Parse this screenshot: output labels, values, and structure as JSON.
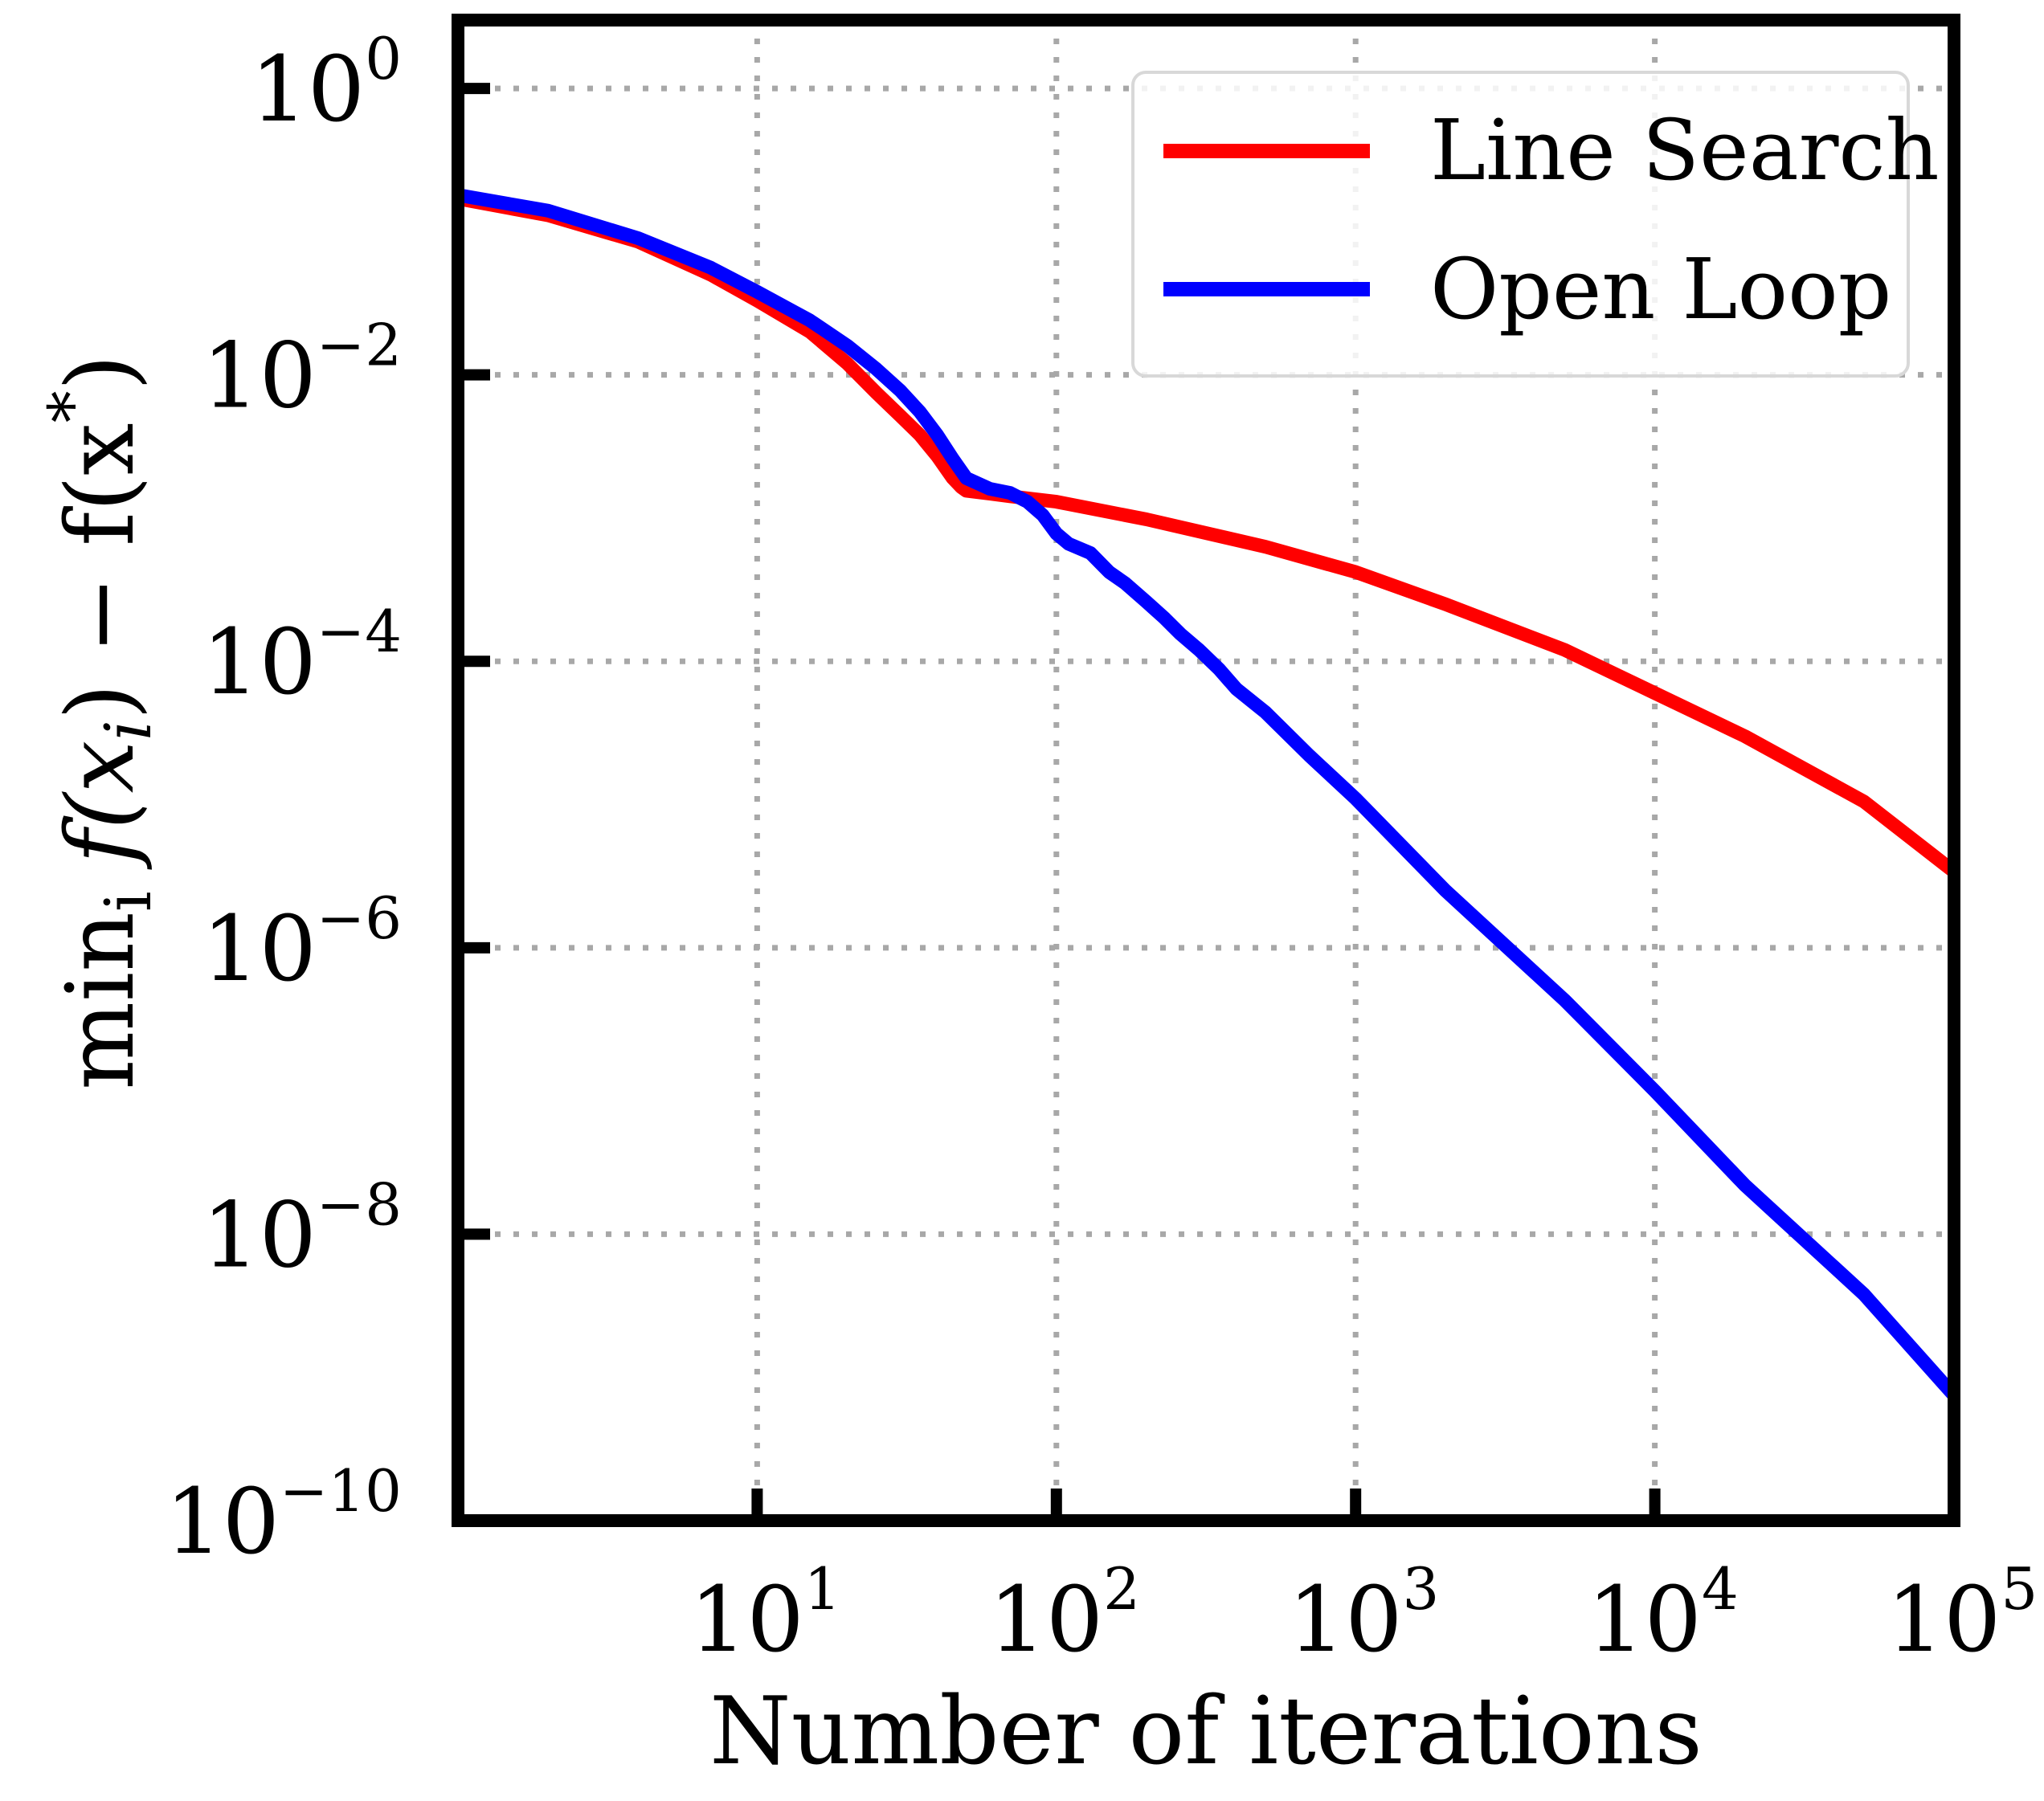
{
  "chart_data": {
    "type": "line",
    "xlabel": "Number of iterations",
    "ylabel": {
      "prefix": "min",
      "sub": "i",
      "expr": "f(x",
      "expr_sub": "i",
      "expr_rest": ") − f(x",
      "expr_sup": "*",
      "expr_end": ")"
    },
    "x_scale": "log",
    "y_scale": "log",
    "xlim": [
      1,
      100000
    ],
    "ylim": [
      1e-10,
      3
    ],
    "x_ticks": [
      {
        "base": "10",
        "exp": "1",
        "value": 10
      },
      {
        "base": "10",
        "exp": "2",
        "value": 100
      },
      {
        "base": "10",
        "exp": "3",
        "value": 1000
      },
      {
        "base": "10",
        "exp": "4",
        "value": 10000
      },
      {
        "base": "10",
        "exp": "5",
        "value": 100000
      }
    ],
    "y_ticks": [
      {
        "base": "10",
        "exp": "0",
        "value": 1
      },
      {
        "base": "10",
        "exp": "−2",
        "value": 0.01
      },
      {
        "base": "10",
        "exp": "−4",
        "value": 0.0001
      },
      {
        "base": "10",
        "exp": "−6",
        "value": 1e-06
      },
      {
        "base": "10",
        "exp": "−8",
        "value": 1e-08
      },
      {
        "base": "10",
        "exp": "−10",
        "value": 1e-10
      }
    ],
    "grid": true,
    "legend_position": "top-right",
    "series": [
      {
        "name": "Line Search",
        "color": "#ff0000",
        "x": [
          1,
          2,
          4,
          7,
          10,
          15,
          20,
          25,
          30,
          35,
          40,
          45,
          48,
          50,
          60,
          70,
          100,
          200,
          500,
          1000,
          2000,
          5000,
          10000,
          20000,
          50000,
          100000
        ],
        "y": [
          0.17,
          0.13,
          0.085,
          0.05,
          0.033,
          0.02,
          0.012,
          0.0075,
          0.0052,
          0.0038,
          0.0027,
          0.0019,
          0.00165,
          0.00155,
          0.00148,
          0.00142,
          0.0013,
          0.00098,
          0.00063,
          0.00042,
          0.00025,
          0.00012,
          6e-05,
          3e-05,
          1.05e-05,
          3.4e-06
        ]
      },
      {
        "name": "Open Loop",
        "color": "#0000ff",
        "x": [
          1,
          2,
          4,
          7,
          10,
          15,
          20,
          25,
          30,
          35,
          40,
          45,
          50,
          60,
          70,
          80,
          90,
          100,
          110,
          130,
          150,
          170,
          200,
          230,
          260,
          300,
          350,
          400,
          500,
          700,
          1000,
          2000,
          5000,
          10000,
          20000,
          50000,
          100000
        ],
        "y": [
          0.18,
          0.14,
          0.09,
          0.056,
          0.038,
          0.024,
          0.016,
          0.011,
          0.0078,
          0.0055,
          0.0038,
          0.0026,
          0.0019,
          0.0016,
          0.0015,
          0.0013,
          0.00105,
          0.00078,
          0.00066,
          0.00057,
          0.00042,
          0.00035,
          0.00026,
          0.0002,
          0.000155,
          0.00012,
          8.8e-05,
          6.4e-05,
          4.4e-05,
          2.2e-05,
          1.1e-05,
          2.5e-06,
          4.3e-07,
          1e-07,
          2.2e-08,
          3.8e-09,
          7.5e-10
        ]
      }
    ]
  }
}
